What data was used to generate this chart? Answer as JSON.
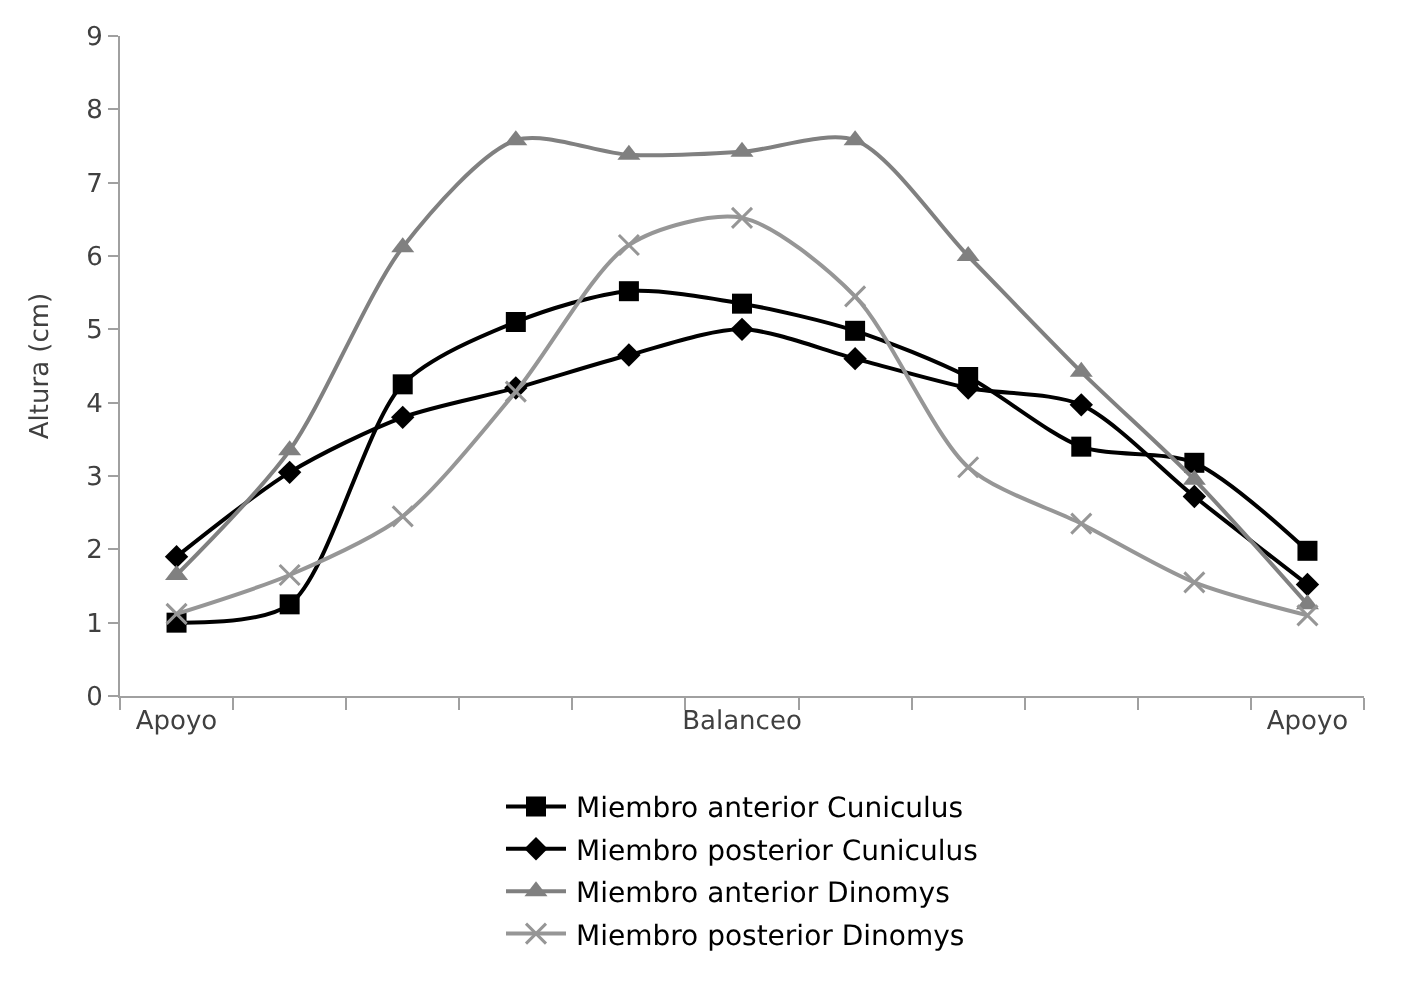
{
  "chart_data": {
    "type": "line",
    "ylabel": "Altura (cm)",
    "categories": [
      "Apoyo",
      null,
      null,
      null,
      null,
      "Balanceo",
      null,
      null,
      null,
      null,
      "Apoyo"
    ],
    "series": [
      {
        "name": "Miembro anterior Cuniculus",
        "color": "#000000",
        "marker": "square",
        "values": [
          1.0,
          1.25,
          4.25,
          5.1,
          5.52,
          5.35,
          4.98,
          4.35,
          3.4,
          3.18,
          1.98
        ]
      },
      {
        "name": "Miembro posterior Cuniculus",
        "color": "#000000",
        "marker": "diamond",
        "values": [
          1.9,
          3.05,
          3.8,
          4.2,
          4.65,
          5.0,
          4.6,
          4.2,
          3.97,
          2.72,
          1.52
        ]
      },
      {
        "name": "Miembro anterior Dinomys",
        "color": "#808080",
        "marker": "triangle",
        "values": [
          1.65,
          3.35,
          6.12,
          7.58,
          7.38,
          7.42,
          7.58,
          6.0,
          4.42,
          2.95,
          1.25
        ]
      },
      {
        "name": "Miembro posterior Dinomys",
        "color": "#969696",
        "marker": "cross",
        "values": [
          1.12,
          1.65,
          2.45,
          4.15,
          6.15,
          6.52,
          5.45,
          3.12,
          2.35,
          1.55,
          1.1
        ]
      }
    ],
    "ylim": [
      0,
      9
    ],
    "yticks": [
      0,
      1,
      2,
      3,
      4,
      5,
      6,
      7,
      8,
      9
    ],
    "legend": "bottom",
    "line_style": "solid"
  }
}
